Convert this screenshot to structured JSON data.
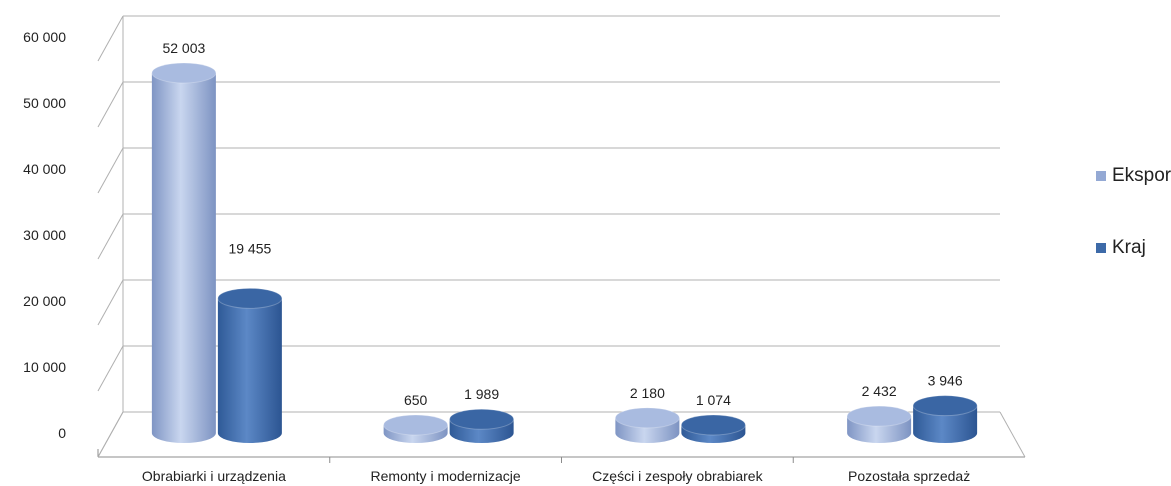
{
  "colors": {
    "eksport": "#94a9d4",
    "kraj": "#3d6aa8",
    "grid": "#b0b0b0"
  },
  "chart_data": {
    "type": "bar",
    "categories": [
      "Obrabiarki i urządzenia",
      "Remonty i modernizacje",
      "Części i zespoły obrabiarek",
      "Pozostała sprzedaż"
    ],
    "series": [
      {
        "name": "Eksport",
        "values": [
          52003,
          650,
          2180,
          2432
        ]
      },
      {
        "name": "Kraj",
        "values": [
          19455,
          1989,
          1074,
          3946
        ]
      }
    ],
    "data_labels": [
      [
        "52 003",
        "650",
        "2 180",
        "2 432"
      ],
      [
        "19 455",
        "1 989",
        "1 074",
        "3 946"
      ]
    ],
    "yticks": [
      "0",
      "10 000",
      "20 000",
      "30 000",
      "40 000",
      "50 000",
      "60 000"
    ],
    "ylim": [
      0,
      60000
    ],
    "title": "",
    "xlabel": "",
    "ylabel": "",
    "grid": true,
    "legend_position": "right",
    "style": "3d-cylinder"
  }
}
